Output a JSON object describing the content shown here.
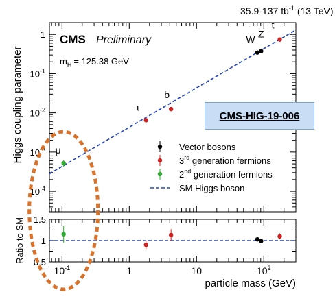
{
  "header": {
    "lumi_value": "35.9-137 fb",
    "lumi_exp": "-1",
    "lumi_energy": "(13 TeV)"
  },
  "labels": {
    "cms": "CMS",
    "preliminary": "Preliminary",
    "mass_prefix": "m",
    "mass_sub": "H",
    "mass_value": "= 125.38 GeV",
    "annotation": "CMS-HIG-19-006"
  },
  "chart_data": [
    {
      "type": "scatter",
      "xscale": "log",
      "yscale": "log",
      "xlim": [
        0.065,
        300
      ],
      "ylim": [
        3e-05,
        2
      ],
      "ylabel": "Higgs coupling parameter",
      "yticks": [
        {
          "value": 0.0001,
          "base": "10",
          "exp": "-4"
        },
        {
          "value": 0.001,
          "base": "10",
          "exp": "-3"
        },
        {
          "value": 0.01,
          "base": "10",
          "exp": "-2"
        },
        {
          "value": 0.1,
          "base": "10",
          "exp": "-1"
        },
        {
          "value": 1,
          "base": "1",
          "exp": ""
        }
      ],
      "series": [
        {
          "name": "Vector bosons",
          "color": "#000000",
          "points": [
            {
              "label": "W",
              "x": 80.4,
              "y": 0.345,
              "err": 0.025
            },
            {
              "label": "Z",
              "x": 91.2,
              "y": 0.375,
              "err": 0.03
            }
          ]
        },
        {
          "name": "3rd generation fermions",
          "color": "#cc2222",
          "points": [
            {
              "label": "t",
              "x": 172.8,
              "y": 0.74,
              "err": 0.07
            },
            {
              "label": "b",
              "x": 4.18,
              "y": 0.0125,
              "err": 0.0015
            },
            {
              "label": "τ",
              "x": 1.777,
              "y": 0.0065,
              "err": 0.0008
            }
          ]
        },
        {
          "name": "2nd generation fermions",
          "color": "#33aa33",
          "points": [
            {
              "label": "μ",
              "x": 0.1057,
              "y": 0.00052,
              "err": 0.0001
            }
          ]
        }
      ],
      "reference": {
        "name": "SM Higgs boson",
        "color": "#2244bb",
        "line": [
          [
            0.065,
            0.00028
          ],
          [
            300,
            1.3
          ]
        ]
      },
      "legend_position": "right"
    },
    {
      "type": "scatter",
      "xscale": "log",
      "xlim": [
        0.065,
        300
      ],
      "ylim": [
        0.5,
        1.5
      ],
      "xlabel": "particle mass (GeV)",
      "ylabel": "Ratio to SM",
      "yticks": [
        0.5,
        1,
        1.5
      ],
      "xticks": [
        {
          "value": 0.1,
          "base": "10",
          "exp": "-1"
        },
        {
          "value": 1,
          "base": "1",
          "exp": ""
        },
        {
          "value": 10,
          "base": "10",
          "exp": ""
        },
        {
          "value": 100,
          "base": "10",
          "exp": "2"
        }
      ],
      "series": [
        {
          "name": "Vector bosons",
          "color": "#000000",
          "points": [
            {
              "x": 80.4,
              "y": 1.03,
              "err": 0.05
            },
            {
              "x": 91.2,
              "y": 0.99,
              "err": 0.05
            }
          ]
        },
        {
          "name": "3rd generation fermions",
          "color": "#cc2222",
          "points": [
            {
              "x": 172.8,
              "y": 1.1,
              "err": 0.07
            },
            {
              "x": 4.18,
              "y": 1.13,
              "err": 0.14
            },
            {
              "x": 1.777,
              "y": 0.9,
              "err": 0.1
            }
          ]
        },
        {
          "name": "2nd generation fermions",
          "color": "#33aa33",
          "points": [
            {
              "x": 0.1057,
              "y": 1.15,
              "err": 0.2
            }
          ]
        }
      ],
      "reference_value": 1
    }
  ],
  "highlight_color": "#d9722b"
}
